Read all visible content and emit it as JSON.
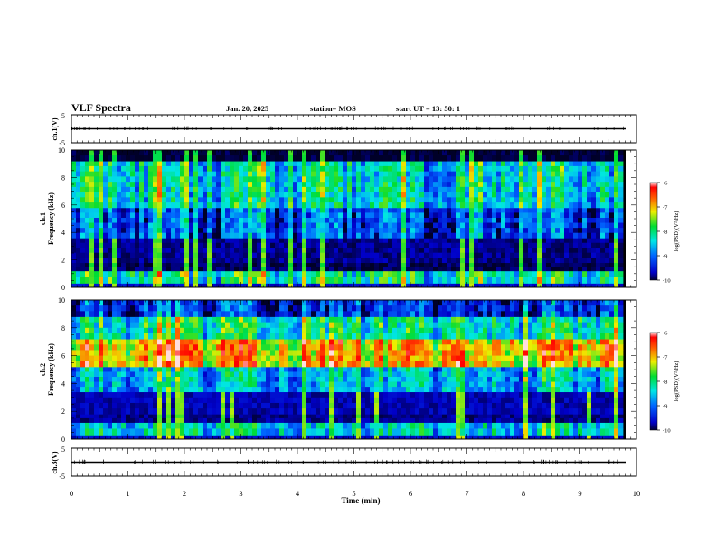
{
  "header": {
    "title": "VLF Spectra",
    "date": "Jan. 20, 2025",
    "station": "station= MOS",
    "start": "start  UT  =   13: 50: 1"
  },
  "chart_data": [
    {
      "type": "line",
      "ylabel": "ch.1(V)",
      "ylim": [
        -5,
        5
      ],
      "y_ticks": [
        "5",
        "-5"
      ],
      "xlim": [
        0,
        10
      ],
      "series": [
        {
          "x": [
            0,
            9.82
          ],
          "y": [
            0,
            0
          ]
        }
      ]
    },
    {
      "type": "heatmap",
      "ylabel": [
        "ch.1",
        "Frequency (kHz)"
      ],
      "ylim": [
        0,
        10
      ],
      "y_ticks": [
        "0",
        "2",
        "4",
        "6",
        "8",
        "10"
      ],
      "xlim": [
        0,
        10
      ],
      "data_end_min": 9.82,
      "colorbar": {
        "label": "log(PSD)(V²/Hz)",
        "ticks": [
          "-6",
          "-7",
          "-8",
          "-9",
          "-10"
        ],
        "range": [
          -10,
          -6
        ]
      },
      "bands": [
        {
          "from": 0,
          "to": 0.3,
          "level": -9.6
        },
        {
          "from": 0.3,
          "to": 1.2,
          "level": -8.2
        },
        {
          "from": 1.2,
          "to": 1.8,
          "level": -9.9
        },
        {
          "from": 1.8,
          "to": 3.6,
          "level": -9.8
        },
        {
          "from": 3.6,
          "to": 5.8,
          "level": -9.2
        },
        {
          "from": 5.8,
          "to": 9.2,
          "level": -8.4
        },
        {
          "from": 9.2,
          "to": 10,
          "level": -10
        }
      ]
    },
    {
      "type": "heatmap",
      "ylabel": [
        "ch.2",
        "Frequency (kHz)"
      ],
      "ylim": [
        0,
        10
      ],
      "y_ticks": [
        "0",
        "2",
        "4",
        "6",
        "8",
        "10"
      ],
      "xlim": [
        0,
        10
      ],
      "data_end_min": 9.82,
      "colorbar": {
        "label": "log(PSD)(V²/Hz)",
        "ticks": [
          "-6",
          "-7",
          "-8",
          "-9",
          "-10"
        ],
        "range": [
          -10,
          -6
        ]
      },
      "bands": [
        {
          "from": 0,
          "to": 0.3,
          "level": -9.6
        },
        {
          "from": 0.3,
          "to": 1.2,
          "level": -8.4
        },
        {
          "from": 1.2,
          "to": 1.8,
          "level": -9.8
        },
        {
          "from": 1.8,
          "to": 3.4,
          "level": -9.7
        },
        {
          "from": 3.4,
          "to": 5.2,
          "level": -8.6
        },
        {
          "from": 5.2,
          "to": 7.2,
          "level": -7.0
        },
        {
          "from": 7.2,
          "to": 8.8,
          "level": -8.2
        },
        {
          "from": 8.8,
          "to": 10,
          "level": -9.4
        }
      ]
    },
    {
      "type": "line",
      "ylabel": "ch.3(V)",
      "ylim": [
        -5,
        5
      ],
      "y_ticks": [
        "5",
        "-5"
      ],
      "xlim": [
        0,
        10
      ],
      "xlabel": "Time (min)",
      "x_ticks": [
        "0",
        "1",
        "2",
        "3",
        "4",
        "5",
        "6",
        "7",
        "8",
        "9",
        "10"
      ],
      "series": [
        {
          "x": [
            0,
            9.82
          ],
          "y": [
            0,
            0
          ]
        }
      ]
    }
  ]
}
